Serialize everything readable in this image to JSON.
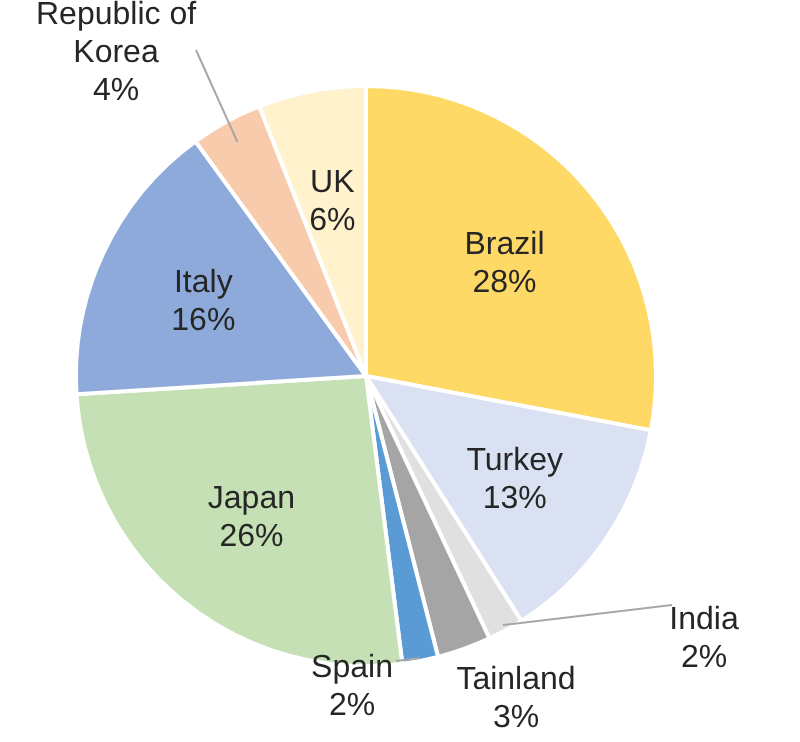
{
  "chart_data": {
    "type": "pie",
    "categories": [
      "Brazil",
      "Turkey",
      "India",
      "Tainland",
      "Spain",
      "Japan",
      "Italy",
      "Republic of Korea",
      "UK"
    ],
    "values": [
      28,
      13,
      2,
      3,
      2,
      26,
      16,
      4,
      6
    ],
    "value_labels": [
      "28%",
      "13%",
      "2%",
      "3%",
      "2%",
      "26%",
      "16%",
      "4%",
      "6%"
    ],
    "colors": [
      "#ffd966",
      "#d9e1f2",
      "#e0e0e0",
      "#a5a5a5",
      "#5b9bd5",
      "#c5e0b4",
      "#8eaadb",
      "#f8cbad",
      "#fff2cc"
    ]
  }
}
